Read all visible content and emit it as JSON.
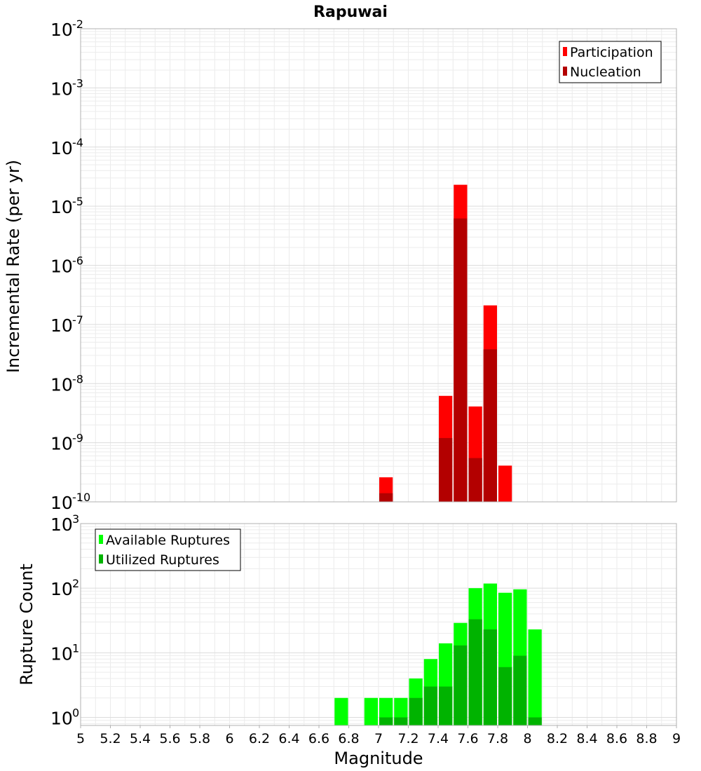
{
  "chart_data": [
    {
      "type": "bar",
      "title": "Rapuwai",
      "xlabel": "",
      "ylabel": "Incremental Rate (per yr)",
      "yscale": "log",
      "xlim": [
        5,
        9
      ],
      "ylim": [
        1e-10,
        0.01
      ],
      "y_tick_exponents": [
        -10,
        -9,
        -8,
        -7,
        -6,
        -5,
        -4,
        -3,
        -2
      ],
      "bar_width": 0.1,
      "grid": true,
      "legend_position": "top-right",
      "series": [
        {
          "name": "Participation",
          "color": "#ff0000",
          "x": [
            7.05,
            7.45,
            7.55,
            7.65,
            7.75,
            7.85
          ],
          "values": [
            2.6e-10,
            6.2e-09,
            2.3e-05,
            4.1e-09,
            2.1e-07,
            4.1e-10
          ]
        },
        {
          "name": "Nucleation",
          "color": "#b30000",
          "x": [
            7.05,
            7.45,
            7.55,
            7.65,
            7.75
          ],
          "values": [
            1.4e-10,
            1.2e-09,
            6.2e-06,
            5.5e-10,
            3.8e-08
          ]
        }
      ]
    },
    {
      "type": "bar",
      "title": "",
      "xlabel": "Magnitude",
      "ylabel": "Rupture Count",
      "yscale": "log",
      "xlim": [
        5,
        9
      ],
      "ylim": [
        0.75,
        1000
      ],
      "y_tick_exponents": [
        0,
        1,
        2,
        3
      ],
      "x_ticks": [
        "5",
        "5.2",
        "5.4",
        "5.6",
        "5.8",
        "6",
        "6.2",
        "6.4",
        "6.6",
        "6.8",
        "7",
        "7.2",
        "7.4",
        "7.6",
        "7.8",
        "8",
        "8.2",
        "8.4",
        "8.6",
        "8.8",
        "9"
      ],
      "bar_width": 0.1,
      "grid": true,
      "legend_position": "top-left",
      "series": [
        {
          "name": "Available Ruptures",
          "color": "#00ff00",
          "x": [
            6.75,
            6.95,
            7.05,
            7.15,
            7.25,
            7.35,
            7.45,
            7.55,
            7.65,
            7.75,
            7.85,
            7.95,
            8.05
          ],
          "values": [
            2,
            2,
            2,
            2,
            4,
            8,
            14,
            29,
            100,
            118,
            85,
            96,
            23
          ]
        },
        {
          "name": "Utilized Ruptures",
          "color": "#00b300",
          "x": [
            7.05,
            7.15,
            7.25,
            7.35,
            7.45,
            7.55,
            7.65,
            7.75,
            7.85,
            7.95,
            8.05
          ],
          "values": [
            1,
            1,
            2,
            3,
            3,
            13,
            33,
            23,
            6,
            9,
            1
          ]
        }
      ]
    }
  ]
}
